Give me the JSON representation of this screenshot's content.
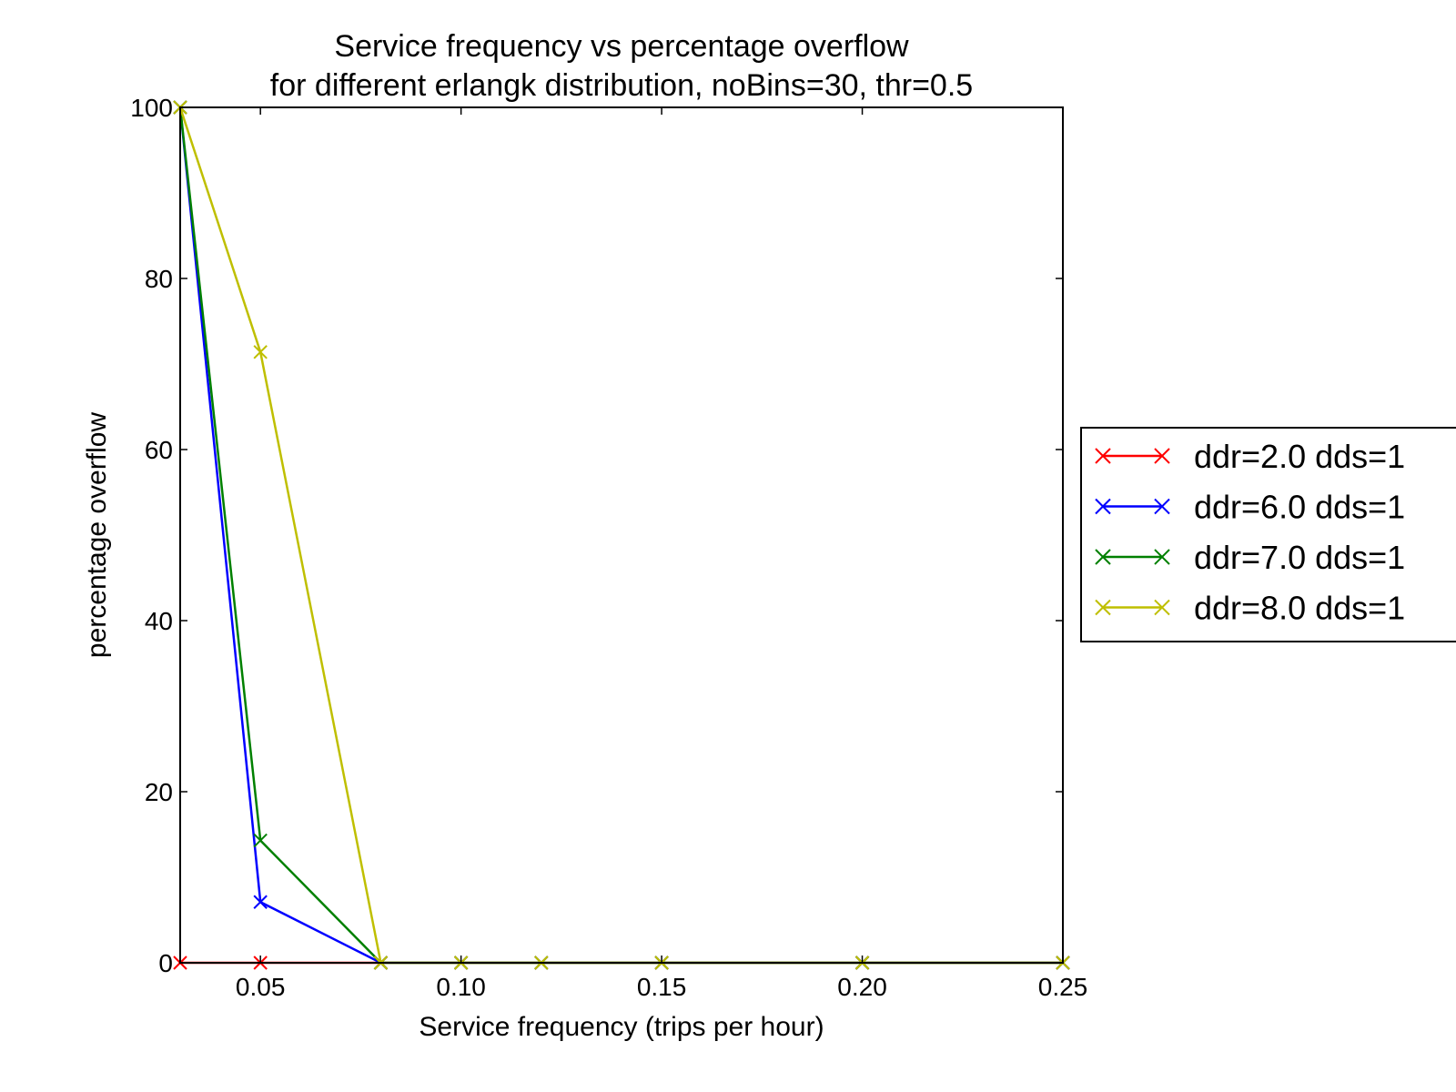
{
  "chart_data": {
    "type": "line",
    "title": [
      "Service frequency vs percentage overflow",
      "for different erlangk distribution, noBins=30, thr=0.5"
    ],
    "xlabel": "Service frequency (trips per hour)",
    "ylabel": "percentage overflow",
    "xlim": [
      0.03,
      0.25
    ],
    "ylim": [
      0,
      100
    ],
    "xticks": [
      0.05,
      0.1,
      0.15,
      0.2,
      0.25
    ],
    "xtick_labels": [
      "0.05",
      "0.10",
      "0.15",
      "0.20",
      "0.25"
    ],
    "yticks": [
      0,
      20,
      40,
      60,
      80,
      100
    ],
    "ytick_labels": [
      "0",
      "20",
      "40",
      "60",
      "80",
      "100"
    ],
    "grid": false,
    "legend_position": "right-outside",
    "marker": "x",
    "x": [
      0.03,
      0.05,
      0.08,
      0.1,
      0.12,
      0.15,
      0.2,
      0.25
    ],
    "series": [
      {
        "name": "ddr=2.0 dds=1",
        "color": "#ff0000",
        "values": [
          0,
          0,
          0,
          0,
          0,
          0,
          0,
          0
        ]
      },
      {
        "name": "ddr=6.0 dds=1",
        "color": "#0000ff",
        "values": [
          100,
          7.1,
          0,
          0,
          0,
          0,
          0,
          0
        ]
      },
      {
        "name": "ddr=7.0 dds=1",
        "color": "#008000",
        "values": [
          100,
          14.3,
          0,
          0,
          0,
          0,
          0,
          0
        ]
      },
      {
        "name": "ddr=8.0 dds=1",
        "color": "#bfbf00",
        "values": [
          100,
          71.4,
          0,
          0,
          0,
          0,
          0,
          0
        ]
      }
    ]
  }
}
